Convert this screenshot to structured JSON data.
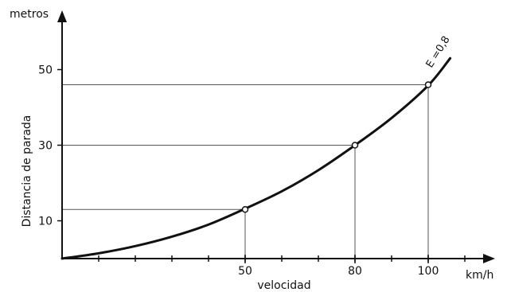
{
  "chart_data": {
    "type": "line",
    "title": "",
    "xlabel": "velocidad",
    "xunit": "km/h",
    "ylabel": "Distancia de parada",
    "yunit": "metros",
    "xlim": [
      0,
      118
    ],
    "ylim": [
      0,
      63
    ],
    "x_ticks": [
      50,
      80,
      100
    ],
    "y_ticks": [
      10,
      30,
      50
    ],
    "grid": false,
    "legend": "none",
    "series": [
      {
        "name": "E =0,8",
        "x": [
          0,
          10,
          20,
          30,
          40,
          50,
          60,
          70,
          80,
          90,
          100,
          106
        ],
        "y": [
          0,
          1.4,
          3.3,
          5.8,
          9.0,
          13.2,
          17.8,
          23.4,
          30.0,
          37.2,
          45.8,
          53.0
        ]
      }
    ],
    "marked_points": [
      {
        "x": 50,
        "y": 13
      },
      {
        "x": 80,
        "y": 30
      },
      {
        "x": 100,
        "y": 46
      }
    ]
  }
}
